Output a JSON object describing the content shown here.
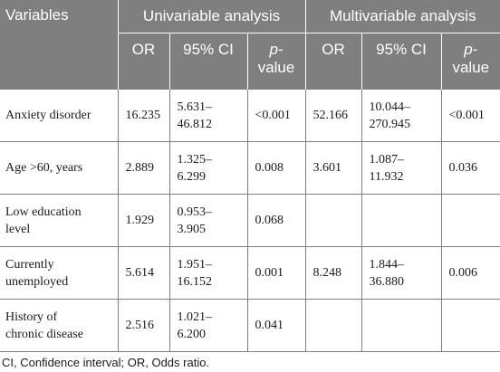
{
  "headers": {
    "variables": "Variables",
    "univariable": "Univariable analysis",
    "multivariable": "Multivariable analysis",
    "or": "OR",
    "ci": "95% CI",
    "p_italic": "p",
    "p_dash": "-",
    "p_value": "value"
  },
  "rows": [
    {
      "label_line1": "Anxiety disorder",
      "label_line2": "",
      "u_or": "16.235",
      "u_ci_line1": "5.631–",
      "u_ci_line2": "46.812",
      "u_p": "<0.001",
      "m_or": "52.166",
      "m_ci_line1": "10.044–",
      "m_ci_line2": "270.945",
      "m_p": "<0.001"
    },
    {
      "label_line1": "Age >60, years",
      "label_line2": "",
      "u_or": "2.889",
      "u_ci_line1": "1.325–",
      "u_ci_line2": "6.299",
      "u_p": "0.008",
      "m_or": "3.601",
      "m_ci_line1": "1.087–",
      "m_ci_line2": "11.932",
      "m_p": "0.036"
    },
    {
      "label_line1": "Low education",
      "label_line2": "level",
      "u_or": "1.929",
      "u_ci_line1": "0.953–",
      "u_ci_line2": "3.905",
      "u_p": "0.068",
      "m_or": "",
      "m_ci_line1": "",
      "m_ci_line2": "",
      "m_p": ""
    },
    {
      "label_line1": "Currently",
      "label_line2": "unemployed",
      "u_or": "5.614",
      "u_ci_line1": "1.951–",
      "u_ci_line2": "16.152",
      "u_p": "0.001",
      "m_or": "8.248",
      "m_ci_line1": "1.844–",
      "m_ci_line2": "36.880",
      "m_p": "0.006"
    },
    {
      "label_line1": "History of",
      "label_line2": "chronic disease",
      "u_or": "2.516",
      "u_ci_line1": "1.021–",
      "u_ci_line2": "6.200",
      "u_p": "0.041",
      "m_or": "",
      "m_ci_line1": "",
      "m_ci_line2": "",
      "m_p": ""
    }
  ],
  "footnote": "CI, Confidence interval; OR, Odds ratio."
}
